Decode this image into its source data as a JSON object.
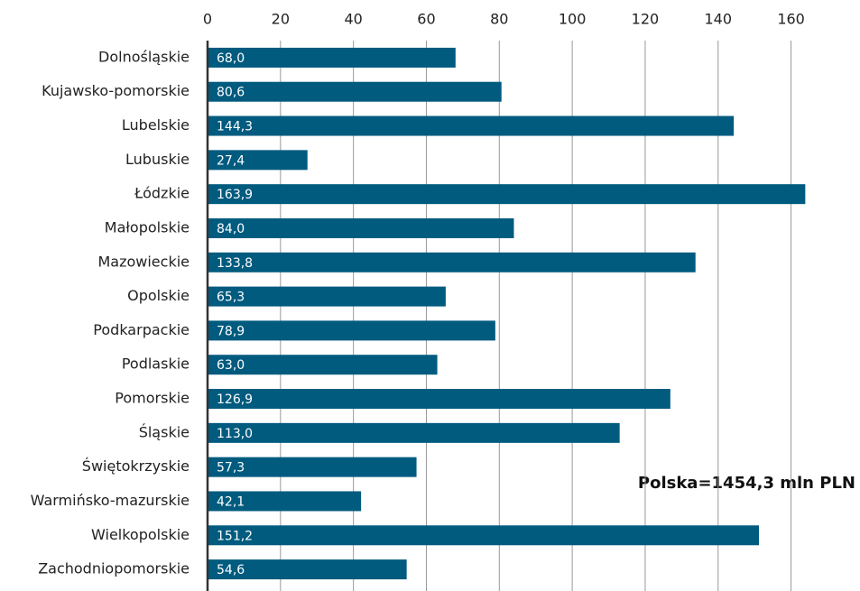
{
  "chart_data": {
    "type": "barh",
    "categories": [
      "Dolnośląskie",
      "Kujawsko-pomorskie",
      "Lubelskie",
      "Lubuskie",
      "Łódzkie",
      "Małopolskie",
      "Mazowieckie",
      "Opolskie",
      "Podkarpackie",
      "Podlaskie",
      "Pomorskie",
      "Śląskie",
      "Świętokrzyskie",
      "Warmińsko-mazurskie",
      "Wielkopolskie",
      "Zachodniopomorskie"
    ],
    "values": [
      68.0,
      80.6,
      144.3,
      27.4,
      163.9,
      84.0,
      133.8,
      65.3,
      78.9,
      63.0,
      126.9,
      113.0,
      57.3,
      42.1,
      151.2,
      54.6
    ],
    "value_labels": [
      "68,0",
      "80,6",
      "144,3",
      "27,4",
      "163,9",
      "84,0",
      "133,8",
      "65,3",
      "78,9",
      "63,0",
      "126,9",
      "113,0",
      "57,3",
      "42,1",
      "151,2",
      "54,6"
    ],
    "color": "#005b7f",
    "xlim": [
      0,
      170
    ],
    "xticks": [
      0,
      20,
      40,
      60,
      80,
      100,
      120,
      140,
      160
    ],
    "grid": true,
    "annotation": "Polska=1454,3 mln PLN"
  }
}
